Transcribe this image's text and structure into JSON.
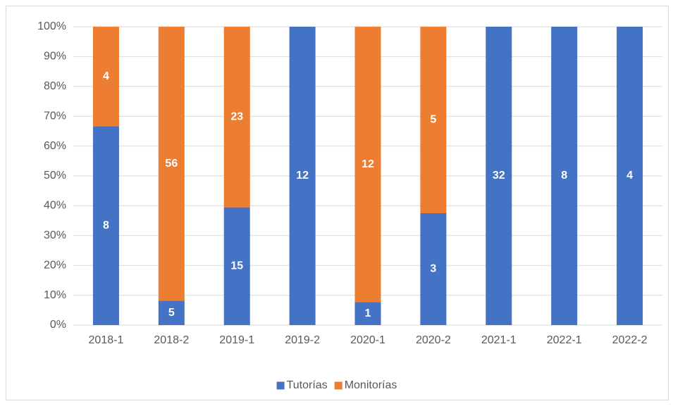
{
  "chart_data": {
    "type": "bar",
    "stack": "percent",
    "categories": [
      "2018-1",
      "2018-2",
      "2019-1",
      "2019-2",
      "2020-1",
      "2020-2",
      "2021-1",
      "2022-1",
      "2022-2"
    ],
    "series": [
      {
        "name": "Tutorías",
        "color": "#4472c4",
        "values": [
          8,
          5,
          15,
          12,
          1,
          3,
          32,
          8,
          4
        ]
      },
      {
        "name": "Monitorías",
        "color": "#ed7d31",
        "values": [
          4,
          56,
          23,
          null,
          12,
          5,
          null,
          null,
          null
        ]
      }
    ],
    "ylim": [
      0,
      100
    ],
    "yticks": [
      {
        "value": 0,
        "label": "0%"
      },
      {
        "value": 10,
        "label": "10%"
      },
      {
        "value": 20,
        "label": "20%"
      },
      {
        "value": 30,
        "label": "30%"
      },
      {
        "value": 40,
        "label": "40%"
      },
      {
        "value": 50,
        "label": "50%"
      },
      {
        "value": 60,
        "label": "60%"
      },
      {
        "value": 70,
        "label": "70%"
      },
      {
        "value": 80,
        "label": "80%"
      },
      {
        "value": 90,
        "label": "90%"
      },
      {
        "value": 100,
        "label": "100%"
      }
    ],
    "grid": true,
    "legend": "bottom"
  }
}
